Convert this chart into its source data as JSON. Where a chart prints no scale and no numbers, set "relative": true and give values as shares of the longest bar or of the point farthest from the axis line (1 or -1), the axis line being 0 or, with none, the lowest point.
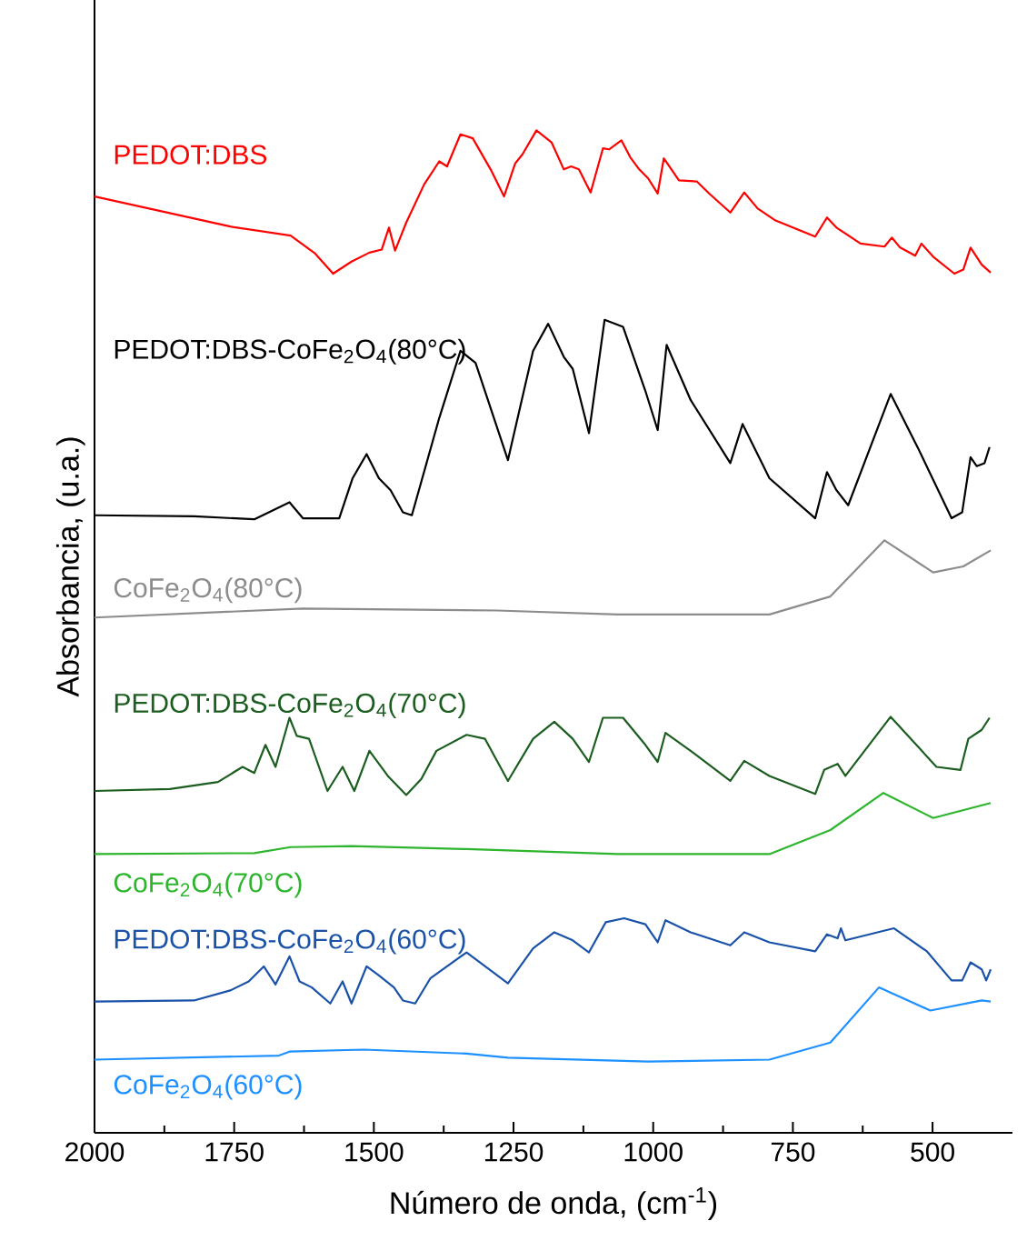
{
  "chart_data": {
    "type": "line",
    "relative": true,
    "legend": false,
    "grid": false,
    "marker": "none",
    "line_style": "solid",
    "xlabel": "Número de onda, (cm$^{-1}$)",
    "ylabel": "Absorbancia, (u.a.)",
    "xlim": [
      2000,
      357
    ],
    "xticks": [
      2000,
      1750,
      1500,
      1250,
      1000,
      750,
      500
    ],
    "series": [
      {
        "name": "PEDOT:DBS",
        "color": "#ff0000",
        "x": [
          2000,
          1757,
          1649,
          1605,
          1573,
          1540,
          1508,
          1486,
          1473,
          1462,
          1442,
          1410,
          1383,
          1369,
          1345,
          1323,
          1291,
          1267,
          1247,
          1234,
          1209,
          1182,
          1160,
          1147,
          1133,
          1112,
          1090,
          1079,
          1057,
          1041,
          1025,
          1009,
          992,
          981,
          954,
          922,
          900,
          862,
          837,
          813,
          781,
          710,
          689,
          672,
          629,
          586,
          573,
          558,
          531,
          520,
          499,
          461,
          445,
          432,
          412,
          396
        ],
        "values": [
          0.934,
          0.904,
          0.895,
          0.877,
          0.857,
          0.869,
          0.878,
          0.881,
          0.903,
          0.88,
          0.908,
          0.946,
          0.969,
          0.964,
          0.996,
          0.992,
          0.961,
          0.934,
          0.967,
          0.976,
          1.0,
          0.988,
          0.961,
          0.964,
          0.961,
          0.938,
          0.982,
          0.981,
          0.99,
          0.973,
          0.961,
          0.952,
          0.937,
          0.972,
          0.95,
          0.949,
          0.937,
          0.918,
          0.938,
          0.922,
          0.91,
          0.894,
          0.913,
          0.903,
          0.887,
          0.884,
          0.893,
          0.883,
          0.875,
          0.887,
          0.874,
          0.857,
          0.861,
          0.883,
          0.866,
          0.858
        ]
      },
      {
        "name": "PEDOT:DBS-CoFe$_{2}$O$_{4}$(80°C)",
        "color": "#000000",
        "x": [
          2000,
          1822,
          1714,
          1651,
          1627,
          1562,
          1538,
          1513,
          1491,
          1470,
          1448,
          1432,
          1383,
          1345,
          1318,
          1260,
          1215,
          1188,
          1160,
          1144,
          1115,
          1087,
          1054,
          1014,
          992,
          976,
          933,
          862,
          840,
          792,
          710,
          689,
          672,
          651,
          575,
          526,
          466,
          447,
          432,
          421,
          407,
          398
        ],
        "values": [
          0.616,
          0.615,
          0.612,
          0.629,
          0.613,
          0.613,
          0.653,
          0.677,
          0.653,
          0.641,
          0.619,
          0.616,
          0.713,
          0.78,
          0.768,
          0.671,
          0.78,
          0.807,
          0.774,
          0.762,
          0.698,
          0.811,
          0.804,
          0.74,
          0.701,
          0.786,
          0.731,
          0.668,
          0.707,
          0.653,
          0.613,
          0.659,
          0.641,
          0.626,
          0.737,
          0.683,
          0.613,
          0.619,
          0.674,
          0.665,
          0.668,
          0.684
        ]
      },
      {
        "name": "CoFe$_{2}$O$_{4}$(80°C)",
        "color": "#8c8c8c",
        "x": [
          2000,
          1627,
          1280,
          1063,
          792,
          683,
          586,
          499,
          445,
          396
        ],
        "values": [
          0.514,
          0.523,
          0.521,
          0.517,
          0.517,
          0.535,
          0.591,
          0.559,
          0.565,
          0.581
        ]
      },
      {
        "name": "PEDOT:DBS-CoFe$_{2}$O$_{4}$(70°C)",
        "color": "#1b5e20",
        "x": [
          2000,
          1865,
          1779,
          1735,
          1714,
          1694,
          1676,
          1651,
          1638,
          1616,
          1583,
          1556,
          1535,
          1508,
          1475,
          1442,
          1415,
          1388,
          1334,
          1301,
          1260,
          1215,
          1177,
          1144,
          1115,
          1090,
          1054,
          1014,
          992,
          978,
          933,
          862,
          837,
          792,
          710,
          694,
          670,
          656,
          575,
          493,
          450,
          436,
          412,
          398
        ],
        "values": [
          0.341,
          0.343,
          0.35,
          0.365,
          0.359,
          0.387,
          0.365,
          0.414,
          0.396,
          0.393,
          0.341,
          0.365,
          0.341,
          0.381,
          0.356,
          0.337,
          0.353,
          0.381,
          0.397,
          0.393,
          0.351,
          0.393,
          0.41,
          0.393,
          0.37,
          0.414,
          0.414,
          0.387,
          0.37,
          0.399,
          0.381,
          0.351,
          0.371,
          0.356,
          0.338,
          0.362,
          0.368,
          0.356,
          0.415,
          0.365,
          0.362,
          0.393,
          0.402,
          0.414
        ]
      },
      {
        "name": "CoFe$_{2}$O$_{4}$(70°C)",
        "color": "#2db52d",
        "x": [
          2000,
          1714,
          1649,
          1540,
          1334,
          1063,
          792,
          683,
          588,
          499,
          396
        ],
        "values": [
          0.278,
          0.279,
          0.285,
          0.286,
          0.283,
          0.278,
          0.278,
          0.302,
          0.339,
          0.314,
          0.329
        ]
      },
      {
        "name": "PEDOT:DBS-CoFe$_{2}$O$_{4}$(60°C)",
        "color": "#1a52a8",
        "x": [
          2000,
          1822,
          1757,
          1724,
          1697,
          1676,
          1651,
          1633,
          1611,
          1578,
          1556,
          1540,
          1513,
          1491,
          1464,
          1448,
          1426,
          1399,
          1334,
          1260,
          1215,
          1177,
          1144,
          1115,
          1085,
          1052,
          1014,
          992,
          978,
          933,
          862,
          837,
          792,
          710,
          689,
          670,
          664,
          656,
          569,
          510,
          466,
          447,
          432,
          412,
          404,
          396
        ],
        "values": [
          0.131,
          0.132,
          0.142,
          0.151,
          0.166,
          0.148,
          0.176,
          0.151,
          0.145,
          0.129,
          0.151,
          0.129,
          0.166,
          0.157,
          0.145,
          0.132,
          0.129,
          0.154,
          0.18,
          0.149,
          0.184,
          0.2,
          0.192,
          0.18,
          0.21,
          0.214,
          0.208,
          0.19,
          0.212,
          0.2,
          0.187,
          0.2,
          0.19,
          0.181,
          0.198,
          0.194,
          0.204,
          0.192,
          0.204,
          0.181,
          0.152,
          0.152,
          0.17,
          0.163,
          0.152,
          0.163
        ]
      },
      {
        "name": "CoFe$_{2}$O$_{4}$(60°C)",
        "color": "#1e90ff",
        "x": [
          2000,
          1670,
          1651,
          1518,
          1334,
          1260,
          1009,
          792,
          683,
          596,
          504,
          412,
          396
        ],
        "values": [
          0.073,
          0.077,
          0.081,
          0.083,
          0.079,
          0.075,
          0.071,
          0.073,
          0.09,
          0.145,
          0.122,
          0.132,
          0.131
        ]
      }
    ]
  }
}
